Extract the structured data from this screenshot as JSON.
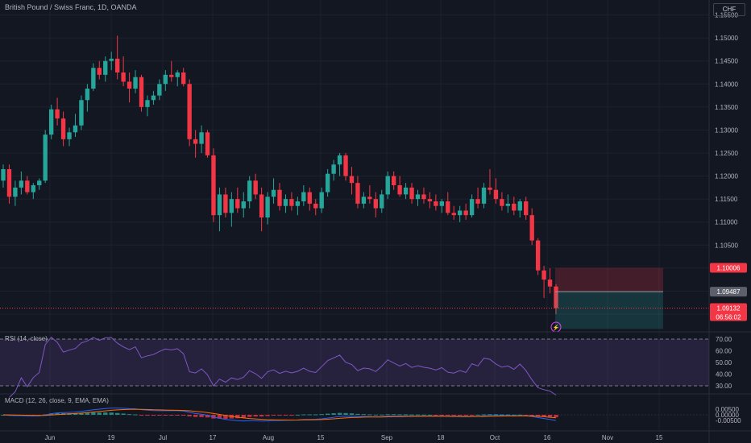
{
  "title": "British Pound / Swiss Franc, 1D, OANDA",
  "currency": "CHF",
  "colors": {
    "background": "#131722",
    "grid": "#1e222d",
    "up": "#26a69a",
    "down": "#f23645",
    "axis_text": "#b2b5be",
    "rsi": "#7e57c2",
    "macd_line": "#2962ff",
    "signal_line": "#ff6d00"
  },
  "price_axis": {
    "ticks": [
      "1.15500",
      "1.15000",
      "1.14500",
      "1.14000",
      "1.13500",
      "1.13000",
      "1.12500",
      "1.12000",
      "1.11500",
      "1.11000",
      "1.10500",
      "1.10000",
      "1.09500",
      "1.09000"
    ],
    "ylim": [
      1.0865,
      1.1558
    ]
  },
  "labels": {
    "stop": "1.10006",
    "entry": "1.09487",
    "last": "1.09132",
    "countdown": "06:56:02"
  },
  "rsi": {
    "label": "RSI (14, close)",
    "ticks": [
      "70.00",
      "60.00",
      "50.00",
      "40.00",
      "30.00"
    ],
    "upper": 70,
    "lower": 30
  },
  "macd": {
    "label": "MACD (12, 26, close, 9, EMA, EMA)",
    "ticks": [
      "0.00500",
      "0.00000",
      "-0.00500"
    ]
  },
  "x_axis": {
    "labels": [
      "Jun",
      "19",
      "Jul",
      "17",
      "Aug",
      "15",
      "Sep",
      "18",
      "Oct",
      "16",
      "Nov",
      "15"
    ]
  },
  "chart_data": {
    "type": "candlestick",
    "candles": [
      [
        1.119,
        1.1225,
        1.1175,
        1.1215
      ],
      [
        1.1215,
        1.1225,
        1.114,
        1.1155
      ],
      [
        1.1155,
        1.119,
        1.1135,
        1.1175
      ],
      [
        1.1175,
        1.121,
        1.116,
        1.119
      ],
      [
        1.119,
        1.12,
        1.116,
        1.1165
      ],
      [
        1.1165,
        1.1185,
        1.115,
        1.118
      ],
      [
        1.118,
        1.1195,
        1.117,
        1.119
      ],
      [
        1.119,
        1.13,
        1.1185,
        1.129
      ],
      [
        1.129,
        1.1355,
        1.128,
        1.1345
      ],
      [
        1.1345,
        1.137,
        1.131,
        1.1325
      ],
      [
        1.1325,
        1.134,
        1.1265,
        1.128
      ],
      [
        1.128,
        1.1305,
        1.1265,
        1.1295
      ],
      [
        1.1295,
        1.1335,
        1.1285,
        1.131
      ],
      [
        1.131,
        1.1375,
        1.13,
        1.1365
      ],
      [
        1.1365,
        1.14,
        1.134,
        1.139
      ],
      [
        1.139,
        1.1445,
        1.1385,
        1.1435
      ],
      [
        1.1435,
        1.145,
        1.141,
        1.142
      ],
      [
        1.142,
        1.146,
        1.1405,
        1.145
      ],
      [
        1.145,
        1.147,
        1.143,
        1.1455
      ],
      [
        1.1455,
        1.1505,
        1.141,
        1.1425
      ],
      [
        1.1425,
        1.146,
        1.1395,
        1.1405
      ],
      [
        1.1405,
        1.1425,
        1.136,
        1.139
      ],
      [
        1.139,
        1.143,
        1.138,
        1.1415
      ],
      [
        1.1415,
        1.142,
        1.134,
        1.135
      ],
      [
        1.135,
        1.1375,
        1.133,
        1.1365
      ],
      [
        1.1365,
        1.1385,
        1.1355,
        1.1375
      ],
      [
        1.1375,
        1.141,
        1.1365,
        1.14
      ],
      [
        1.14,
        1.143,
        1.1385,
        1.142
      ],
      [
        1.142,
        1.145,
        1.1405,
        1.1415
      ],
      [
        1.1415,
        1.143,
        1.1395,
        1.1425
      ],
      [
        1.1425,
        1.1435,
        1.1395,
        1.14
      ],
      [
        1.14,
        1.141,
        1.1265,
        1.128
      ],
      [
        1.128,
        1.13,
        1.124,
        1.127
      ],
      [
        1.127,
        1.131,
        1.125,
        1.1295
      ],
      [
        1.1295,
        1.13,
        1.124,
        1.1245
      ],
      [
        1.1245,
        1.126,
        1.11,
        1.1115
      ],
      [
        1.1115,
        1.1175,
        1.108,
        1.116
      ],
      [
        1.116,
        1.1175,
        1.111,
        1.112
      ],
      [
        1.112,
        1.1165,
        1.109,
        1.115
      ],
      [
        1.115,
        1.1175,
        1.112,
        1.113
      ],
      [
        1.113,
        1.1165,
        1.111,
        1.1145
      ],
      [
        1.1145,
        1.12,
        1.113,
        1.119
      ],
      [
        1.119,
        1.1205,
        1.115,
        1.116
      ],
      [
        1.116,
        1.1175,
        1.108,
        1.111
      ],
      [
        1.111,
        1.1165,
        1.1095,
        1.1155
      ],
      [
        1.1155,
        1.1195,
        1.114,
        1.117
      ],
      [
        1.117,
        1.1185,
        1.1125,
        1.1135
      ],
      [
        1.1135,
        1.116,
        1.112,
        1.115
      ],
      [
        1.115,
        1.1165,
        1.1125,
        1.1135
      ],
      [
        1.1135,
        1.1155,
        1.1115,
        1.1145
      ],
      [
        1.1145,
        1.118,
        1.1135,
        1.1165
      ],
      [
        1.1165,
        1.1175,
        1.1125,
        1.114
      ],
      [
        1.114,
        1.115,
        1.1115,
        1.113
      ],
      [
        1.113,
        1.1175,
        1.112,
        1.1165
      ],
      [
        1.1165,
        1.1215,
        1.1155,
        1.1205
      ],
      [
        1.1205,
        1.1235,
        1.119,
        1.1225
      ],
      [
        1.1225,
        1.125,
        1.12,
        1.1245
      ],
      [
        1.1245,
        1.125,
        1.119,
        1.12
      ],
      [
        1.12,
        1.122,
        1.116,
        1.1185
      ],
      [
        1.1185,
        1.12,
        1.113,
        1.114
      ],
      [
        1.114,
        1.1165,
        1.113,
        1.1155
      ],
      [
        1.1155,
        1.118,
        1.114,
        1.115
      ],
      [
        1.115,
        1.1165,
        1.111,
        1.113
      ],
      [
        1.113,
        1.117,
        1.112,
        1.116
      ],
      [
        1.116,
        1.121,
        1.115,
        1.12
      ],
      [
        1.12,
        1.121,
        1.117,
        1.118
      ],
      [
        1.118,
        1.12,
        1.1155,
        1.116
      ],
      [
        1.116,
        1.1185,
        1.115,
        1.1175
      ],
      [
        1.1175,
        1.1185,
        1.114,
        1.115
      ],
      [
        1.115,
        1.117,
        1.1135,
        1.116
      ],
      [
        1.116,
        1.1175,
        1.114,
        1.115
      ],
      [
        1.115,
        1.1165,
        1.113,
        1.1145
      ],
      [
        1.1145,
        1.116,
        1.1125,
        1.1135
      ],
      [
        1.1135,
        1.115,
        1.112,
        1.1145
      ],
      [
        1.1145,
        1.1165,
        1.1115,
        1.112
      ],
      [
        1.112,
        1.1135,
        1.1105,
        1.1115
      ],
      [
        1.1115,
        1.1135,
        1.11,
        1.1125
      ],
      [
        1.1125,
        1.114,
        1.1105,
        1.1115
      ],
      [
        1.1115,
        1.116,
        1.111,
        1.115
      ],
      [
        1.115,
        1.1175,
        1.113,
        1.114
      ],
      [
        1.114,
        1.1185,
        1.113,
        1.1175
      ],
      [
        1.1175,
        1.1215,
        1.116,
        1.117
      ],
      [
        1.117,
        1.1195,
        1.114,
        1.115
      ],
      [
        1.115,
        1.1165,
        1.1125,
        1.1135
      ],
      [
        1.1135,
        1.116,
        1.112,
        1.114
      ],
      [
        1.114,
        1.1155,
        1.1115,
        1.1125
      ],
      [
        1.1125,
        1.115,
        1.111,
        1.1145
      ],
      [
        1.1145,
        1.1155,
        1.1105,
        1.1115
      ],
      [
        1.1115,
        1.113,
        1.105,
        1.106
      ],
      [
        1.106,
        1.1065,
        1.0985,
        1.0995
      ],
      [
        1.0995,
        1.1005,
        1.0935,
        1.0975
      ],
      [
        1.0975,
        1.1,
        1.0945,
        1.096
      ],
      [
        1.096,
        1.0965,
        1.09,
        1.0913
      ]
    ],
    "trade_box": {
      "entry": 1.09487,
      "stop": 1.10006,
      "target": 1.0868
    }
  }
}
